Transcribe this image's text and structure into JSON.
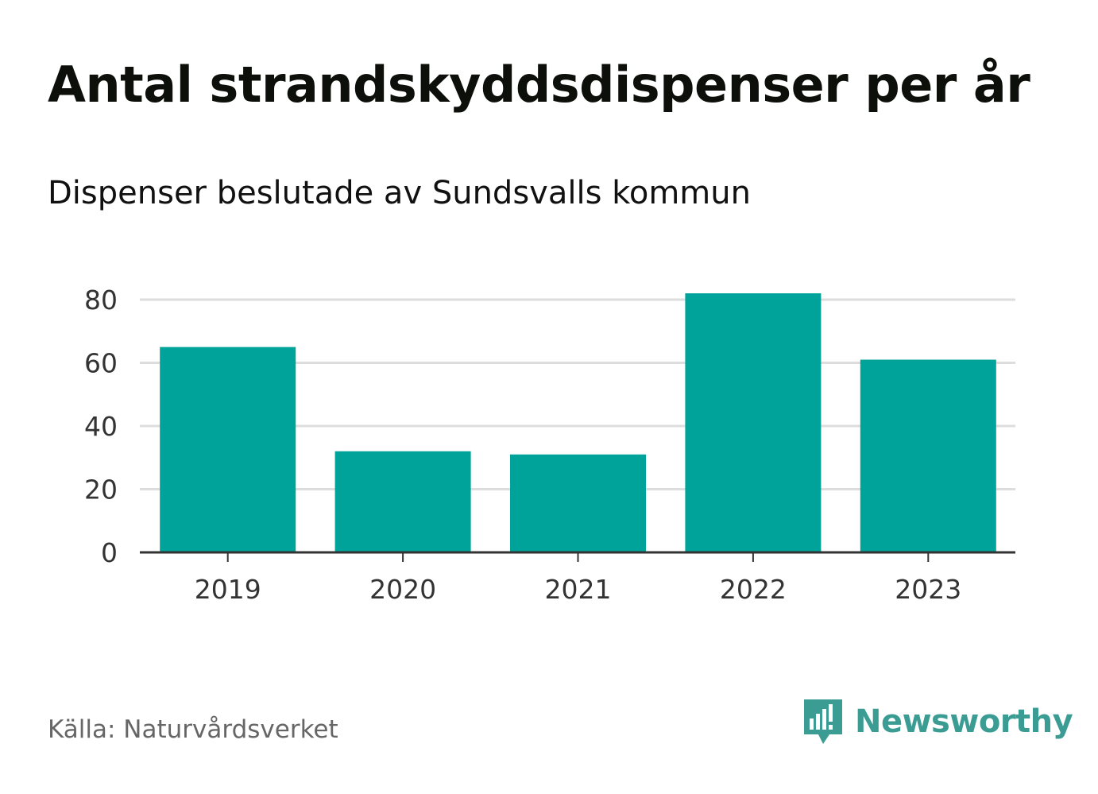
{
  "colors": {
    "bar": "#00a39a",
    "grid": "#dddddd",
    "axis": "#333333",
    "brand": "#3a9c93"
  },
  "header": {
    "title": "Antal strandskyddsdispenser per år",
    "subtitle": "Dispenser beslutade av Sundsvalls kommun"
  },
  "footer": {
    "source": "Källa: Naturvårdsverket",
    "brand_name": "Newsworthy",
    "brand_icon": "newsworthy-logo-icon"
  },
  "chart_data": {
    "type": "bar",
    "title": "Antal strandskyddsdispenser per år",
    "subtitle": "Dispenser beslutade av Sundsvalls kommun",
    "categories": [
      "2019",
      "2020",
      "2021",
      "2022",
      "2023"
    ],
    "values": [
      65,
      32,
      31,
      82,
      61
    ],
    "xlabel": "",
    "ylabel": "",
    "ylim": [
      0,
      80
    ],
    "yticks": [
      0,
      20,
      40,
      60,
      80
    ],
    "grid": true
  }
}
